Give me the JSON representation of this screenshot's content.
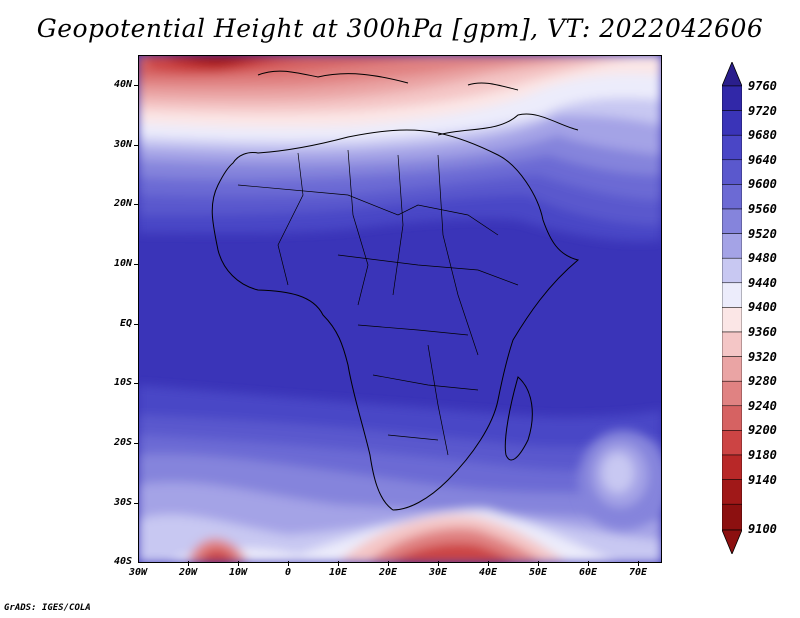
{
  "title": "Geopotential Height at 300hPa [gpm], VT: 2022042606",
  "credit": "GrADS: IGES/COLA",
  "lat_labels": [
    "40N",
    "30N",
    "20N",
    "10N",
    "EQ",
    "10S",
    "20S",
    "30S",
    "40S"
  ],
  "lon_labels": [
    "30W",
    "20W",
    "10W",
    "0",
    "10E",
    "20E",
    "30E",
    "40E",
    "50E",
    "60E",
    "70E"
  ],
  "colorbar": {
    "levels": [
      "9760",
      "9720",
      "9680",
      "9640",
      "9600",
      "9560",
      "9520",
      "9480",
      "9440",
      "9400",
      "9360",
      "9320",
      "9280",
      "9240",
      "9200",
      "9180",
      "9140",
      "9100"
    ],
    "colors_top_to_bottom": [
      "#2a1e8c",
      "#3128a8",
      "#3a34b8",
      "#4a46c6",
      "#5a58cd",
      "#6c6ad4",
      "#8584dc",
      "#a4a3e6",
      "#c8c8f2",
      "#ececfb",
      "#fbe6e6",
      "#f4c6c6",
      "#eaa4a4",
      "#e08282",
      "#d66262",
      "#cc4444",
      "#b82828",
      "#a01818"
    ]
  },
  "map": {
    "region": "Africa",
    "lon_range": [
      -30,
      75
    ],
    "lat_range": [
      -40,
      45
    ],
    "variable": "Geopotential Height at 300hPa",
    "units": "gpm"
  }
}
